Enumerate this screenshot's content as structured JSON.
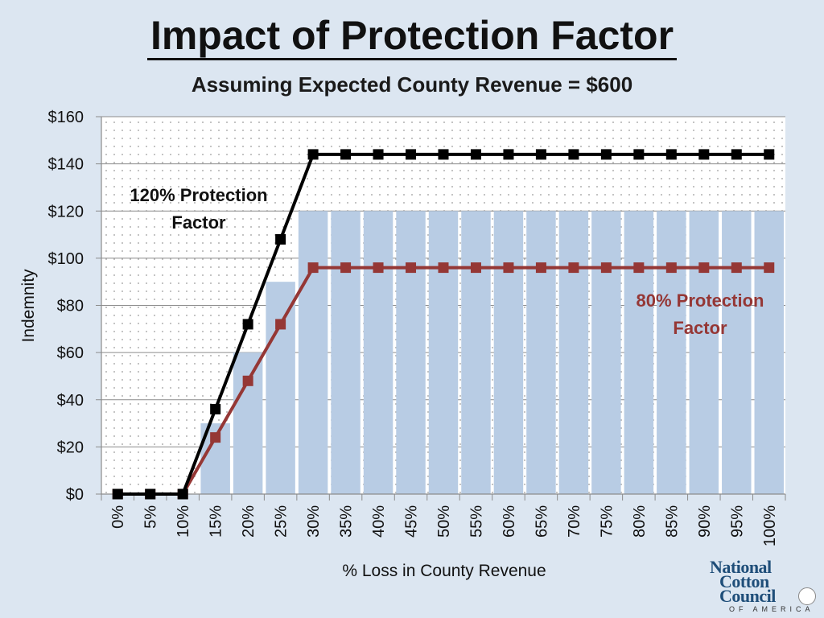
{
  "title": "Impact of Protection Factor",
  "subtitle": "Assuming Expected County Revenue = $600",
  "colors": {
    "background": "#dce6f1",
    "bars": "#b8cce4",
    "series_120": "#000000",
    "series_80": "#953735",
    "annotation_80": "#953735"
  },
  "chart_data": {
    "type": "bar+line",
    "categories": [
      "0%",
      "5%",
      "10%",
      "15%",
      "20%",
      "25%",
      "30%",
      "35%",
      "40%",
      "45%",
      "50%",
      "55%",
      "60%",
      "65%",
      "70%",
      "75%",
      "80%",
      "85%",
      "90%",
      "95%",
      "100%"
    ],
    "bar_values": [
      0,
      0,
      0,
      30,
      60,
      90,
      120,
      120,
      120,
      120,
      120,
      120,
      120,
      120,
      120,
      120,
      120,
      120,
      120,
      120,
      120
    ],
    "series": [
      {
        "name": "120% Protection Factor",
        "values": [
          0,
          0,
          0,
          36,
          72,
          108,
          144,
          144,
          144,
          144,
          144,
          144,
          144,
          144,
          144,
          144,
          144,
          144,
          144,
          144,
          144
        ]
      },
      {
        "name": "80% Protection Factor",
        "values": [
          0,
          0,
          0,
          24,
          48,
          72,
          96,
          96,
          96,
          96,
          96,
          96,
          96,
          96,
          96,
          96,
          96,
          96,
          96,
          96,
          96
        ]
      }
    ],
    "xlabel": "% Loss in County Revenue",
    "ylabel": "Indemnity",
    "ylim": [
      0,
      160
    ],
    "yticks": [
      0,
      20,
      40,
      60,
      80,
      100,
      120,
      140,
      160
    ],
    "ytick_labels": [
      "$0",
      "$20",
      "$40",
      "$60",
      "$80",
      "$100",
      "$120",
      "$140",
      "$160"
    ],
    "grid": true
  },
  "annotations": {
    "pf120_line1": "120% Protection",
    "pf120_line2": "Factor",
    "pf80_line1": "80% Protection",
    "pf80_line2": "Factor"
  },
  "logo": {
    "line1": "National",
    "line2": "Cotton",
    "line3": "Council",
    "line4": "OF AMERICA"
  }
}
